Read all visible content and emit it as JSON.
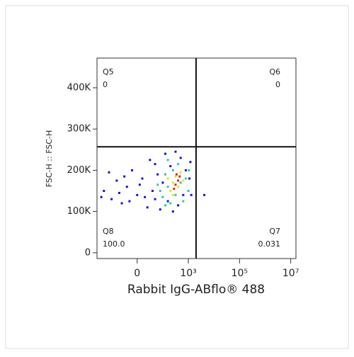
{
  "chart_data": {
    "type": "scatter",
    "x_label": "Rabbit IgG-ABflo® 488",
    "y_label": "FSC-H :: FSC-H",
    "xscale": "biexponential",
    "xlim": [
      -785,
      16000000
    ],
    "xticks": [
      0,
      {
        "value": 1000,
        "label": "10³"
      },
      {
        "value": 100000,
        "label": "10⁵"
      },
      {
        "value": 10000000,
        "label": "10⁷"
      }
    ],
    "ylim": [
      -14000,
      472000
    ],
    "yticks": [
      0,
      {
        "value": 100000,
        "label": "100K"
      },
      {
        "value": 200000,
        "label": "200K"
      },
      {
        "value": 300000,
        "label": "300K"
      },
      {
        "value": 400000,
        "label": "400K"
      }
    ],
    "gates": {
      "x": 2000,
      "y": 257000
    },
    "quadrants": [
      {
        "name": "Q5",
        "value": 0,
        "corner": "top-left"
      },
      {
        "name": "Q6",
        "value": 0,
        "corner": "top-right"
      },
      {
        "name": "Q7",
        "value": 0.031,
        "corner": "bottom-right"
      },
      {
        "name": "Q8",
        "value": 100,
        "value_label": "100.0",
        "corner": "bottom-left"
      }
    ],
    "series": [
      {
        "color": "#1010e0",
        "x": [
          -650,
          -500,
          -400,
          -300,
          -200,
          -100,
          0,
          100,
          200,
          250,
          300,
          350,
          400,
          450,
          500,
          550,
          600,
          650,
          700,
          750,
          800,
          850,
          900,
          950,
          1100,
          1300,
          -550,
          -350,
          -150,
          50,
          150,
          350,
          -700,
          -250,
          1200,
          4200
        ],
        "values": [
          150000,
          130000,
          175000,
          120000,
          160000,
          200000,
          140000,
          180000,
          110000,
          225000,
          150000,
          130000,
          190000,
          105000,
          170000,
          240000,
          125000,
          210000,
          100000,
          245000,
          115000,
          230000,
          140000,
          200000,
          180000,
          140000,
          195000,
          145000,
          125000,
          165000,
          135000,
          215000,
          135000,
          185000,
          220000,
          140000
        ]
      },
      {
        "color": "#20d0a0",
        "x": [
          450,
          500,
          550,
          600,
          650,
          700,
          750,
          800,
          850,
          900,
          950,
          1000,
          600,
          400,
          1050,
          550
        ],
        "values": [
          150000,
          135000,
          190000,
          160000,
          120000,
          200000,
          140000,
          215000,
          170000,
          125000,
          180000,
          150000,
          225000,
          165000,
          200000,
          115000
        ]
      },
      {
        "color": "#e8e020",
        "x": [
          650,
          700,
          750,
          800,
          850,
          700,
          900,
          600
        ],
        "values": [
          150000,
          170000,
          185000,
          160000,
          195000,
          140000,
          175000,
          180000
        ]
      },
      {
        "color": "#e82010",
        "x": [
          750,
          800,
          720,
          830,
          770
        ],
        "values": [
          165000,
          175000,
          155000,
          185000,
          190000
        ]
      }
    ]
  }
}
